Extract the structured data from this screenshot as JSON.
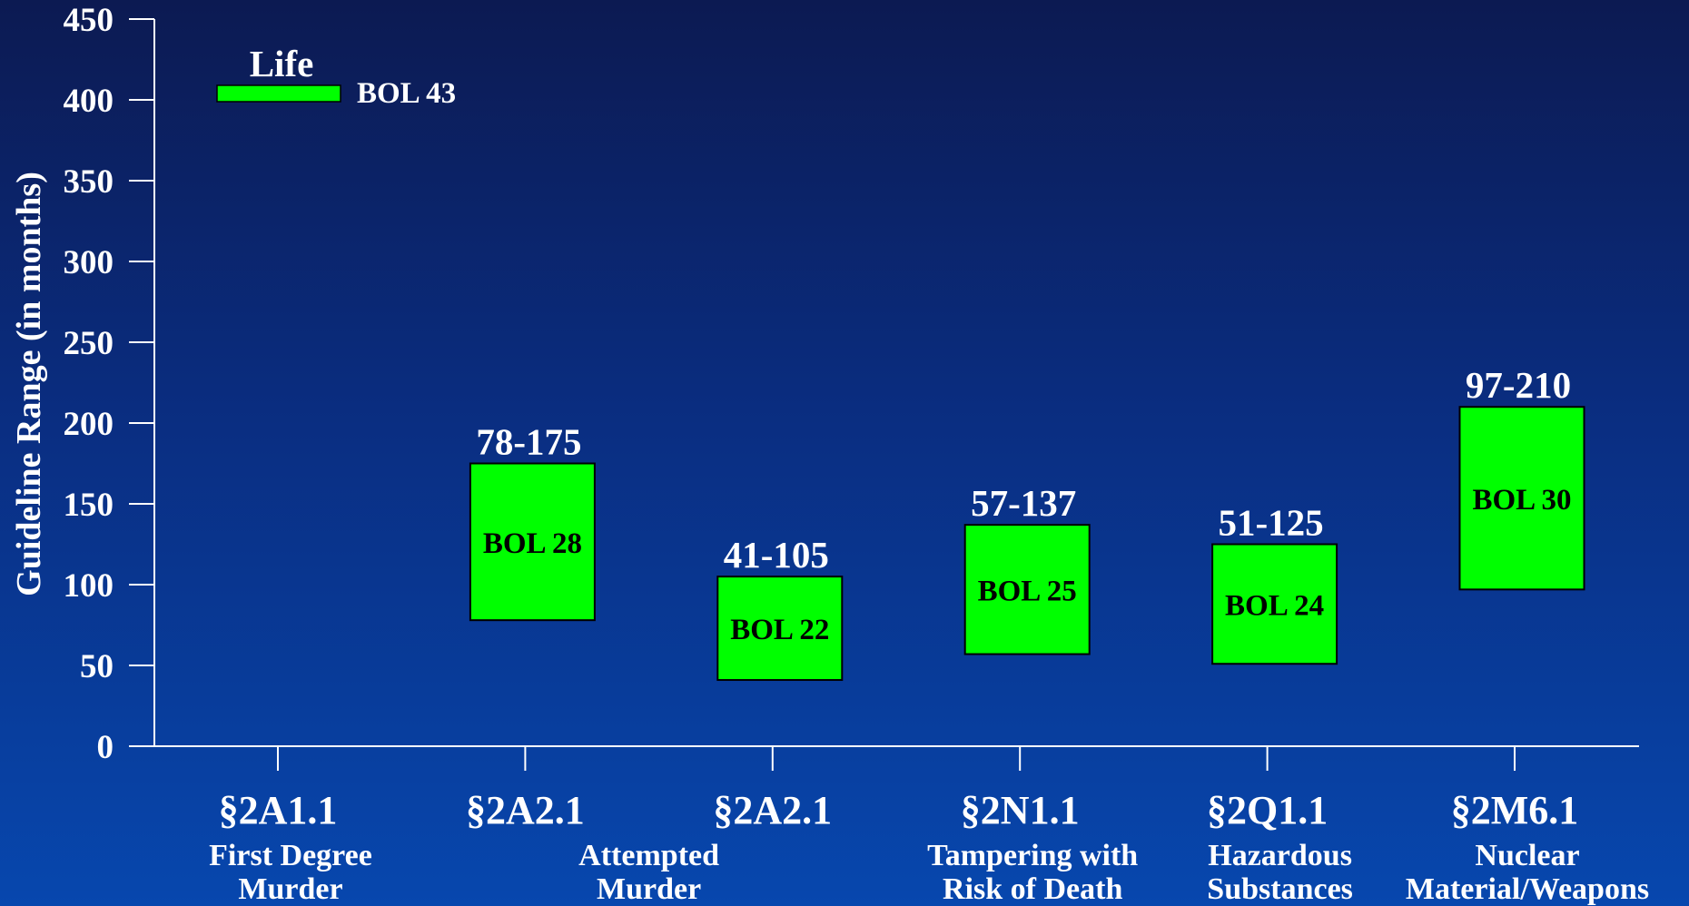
{
  "chart_data": {
    "type": "bar",
    "subtype": "floating-range",
    "ylabel": "Guideline Range (in months)",
    "ylim": [
      0,
      450
    ],
    "yticks": [
      0,
      50,
      100,
      150,
      200,
      250,
      300,
      350,
      400,
      450
    ],
    "grid": false,
    "bar_color": "#00ff00",
    "categories": [
      {
        "code": "§2A1.1",
        "desc": [
          "First Degree",
          "Murder"
        ]
      },
      {
        "code": "§2A2.1",
        "desc": [
          "Attempted",
          "Murder"
        ]
      },
      {
        "code": "§2A2.1",
        "desc": []
      },
      {
        "code": "§2N1.1",
        "desc": [
          "Tampering with",
          "Risk of Death"
        ]
      },
      {
        "code": "§2Q1.1",
        "desc": [
          "Hazardous",
          "Substances"
        ]
      },
      {
        "code": "§2M6.1",
        "desc": [
          "Nuclear",
          "Material/Weapons"
        ]
      }
    ],
    "desc_groups": [
      {
        "lines": [
          "First Degree",
          "Murder"
        ],
        "span": [
          0,
          0
        ]
      },
      {
        "lines": [
          "Attempted",
          "Murder"
        ],
        "span": [
          1,
          2
        ]
      },
      {
        "lines": [
          "Tampering with",
          "Risk of Death"
        ],
        "span": [
          3,
          3
        ]
      },
      {
        "lines": [
          "Hazardous",
          "Substances"
        ],
        "span": [
          4,
          4
        ]
      },
      {
        "lines": [
          "Nuclear",
          "Material/Weapons"
        ],
        "span": [
          5,
          5
        ]
      }
    ],
    "ranges": [
      null,
      {
        "low": 78,
        "high": 175,
        "label": "78-175",
        "bol": "BOL 28"
      },
      {
        "low": 41,
        "high": 105,
        "label": "41-105",
        "bol": "BOL 22"
      },
      {
        "low": 57,
        "high": 137,
        "label": "57-137",
        "bol": "BOL 25"
      },
      {
        "low": 51,
        "high": 125,
        "label": "51-125",
        "bol": "BOL 24"
      },
      {
        "low": 97,
        "high": 210,
        "label": "97-210",
        "bol": "BOL 30"
      }
    ],
    "legend": {
      "title": "Life",
      "bol": "BOL 43",
      "placement": "top-left"
    }
  }
}
